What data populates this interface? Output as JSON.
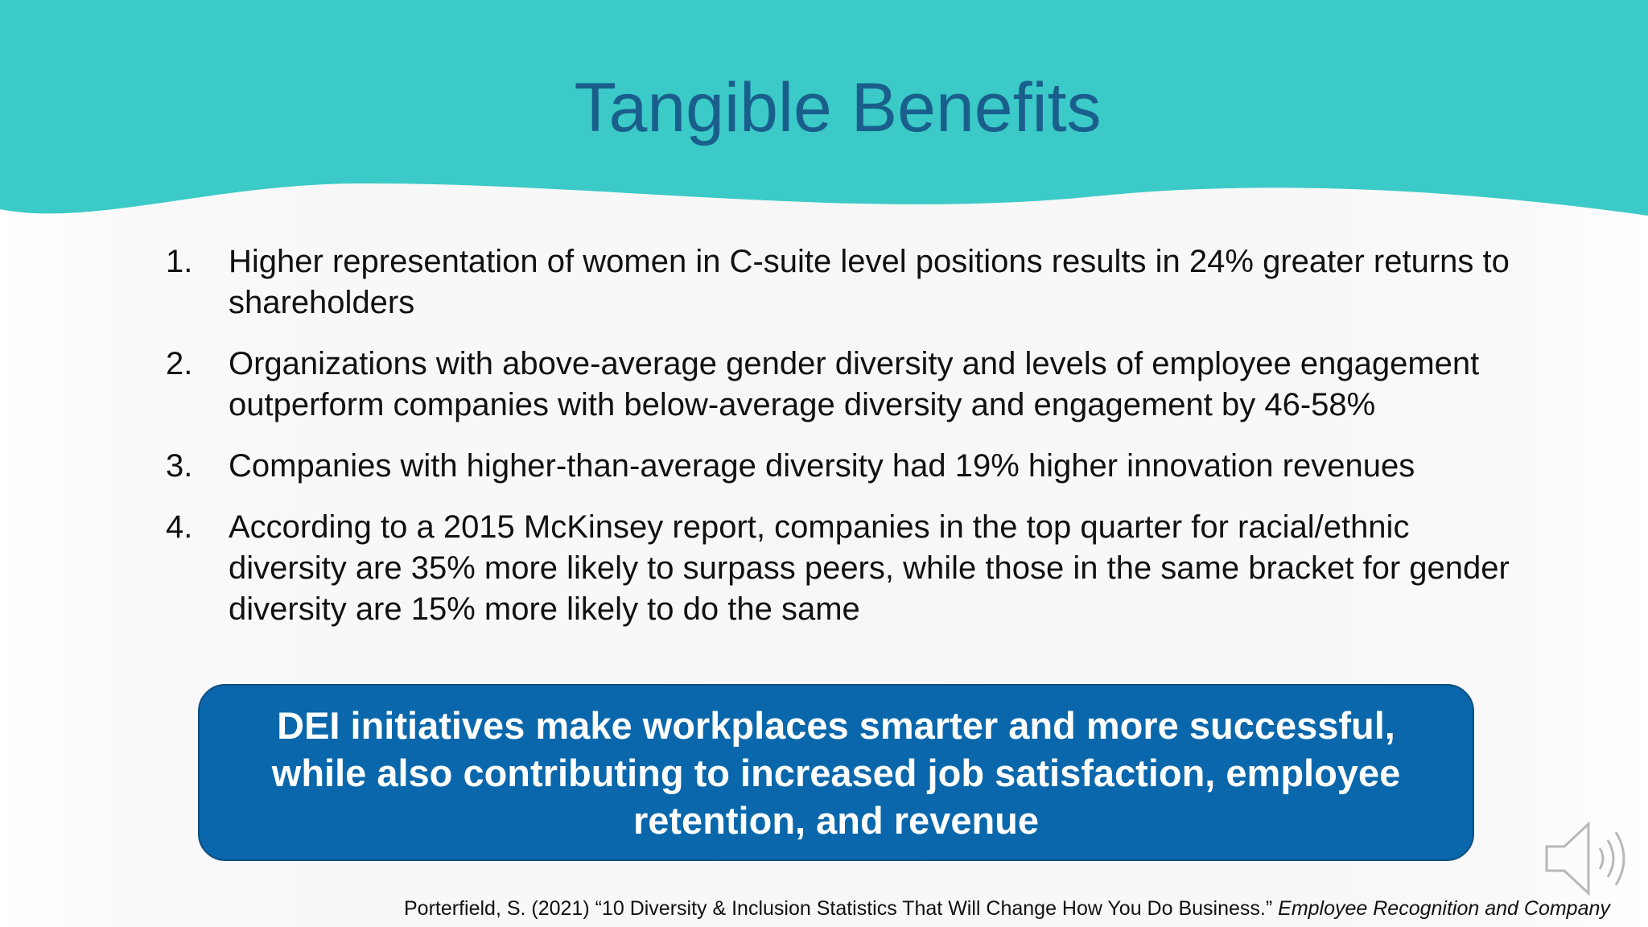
{
  "slide": {
    "title": "Tangible Benefits",
    "items": [
      {
        "number": "1.",
        "text": "Higher representation of women in C-suite level positions results in 24% greater returns to shareholders"
      },
      {
        "number": "2.",
        "text": "Organizations with above-average gender diversity and levels of employee engagement outperform companies with below-average diversity and engagement by 46-58%"
      },
      {
        "number": "3.",
        "text": "Companies with higher-than-average diversity had 19% higher innovation revenues"
      },
      {
        "number": "4.",
        "text": "According to a 2015 McKinsey report, companies in the top quarter for racial/ethnic diversity are 35% more likely to surpass peers, while those in the same bracket for gender diversity are 15% more likely to do the same"
      }
    ],
    "callout": "DEI initiatives make workplaces smarter and more successful, while also contributing to increased job satisfaction, employee retention, and revenue",
    "citation": {
      "text": "Porterfield, S. (2021) “10 Diversity & Inclusion Statistics That Will Change How You Do Business.”",
      "source": "Employee Recognition and Company"
    },
    "speaker_icon": "speaker-icon"
  },
  "colors": {
    "header": "#3bcac7",
    "title": "#1a5f8c",
    "callout": "#0a67ab",
    "callout_border": "#0b4f80",
    "body_text": "#111111"
  }
}
